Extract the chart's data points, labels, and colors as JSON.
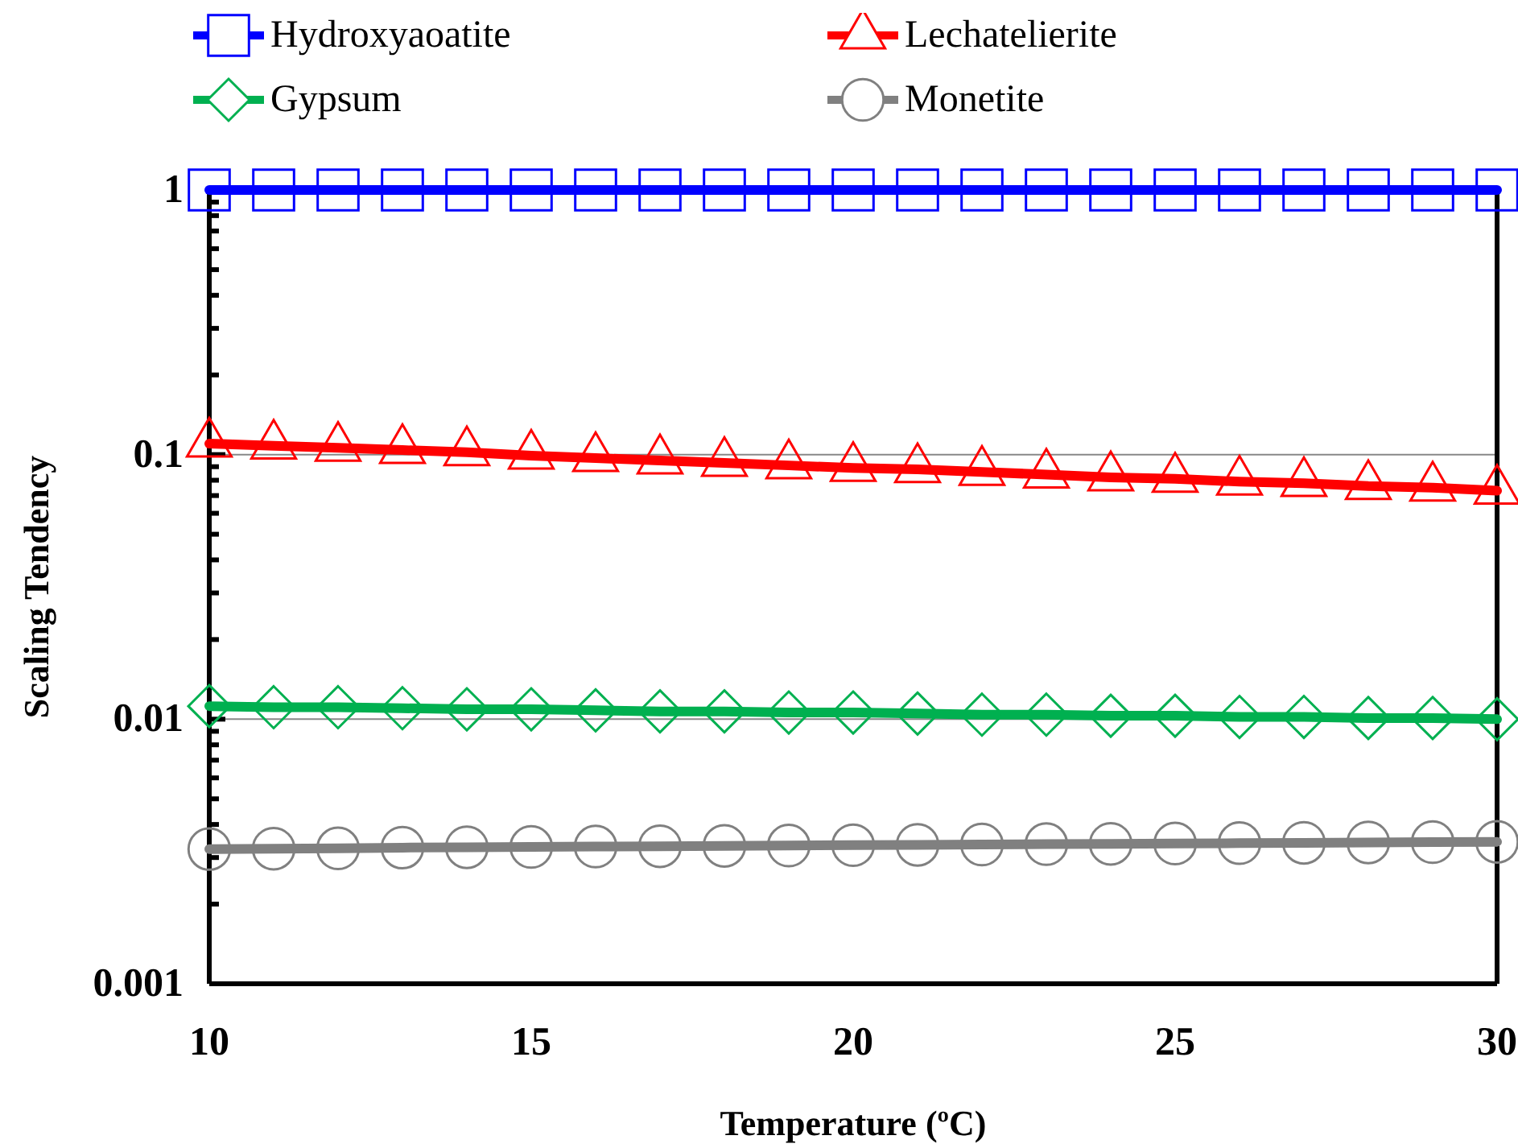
{
  "chart_data": {
    "type": "line",
    "xlabel": "Temperature (ºC)",
    "ylabel": "Scaling Tendency",
    "log": "y",
    "ref_lines": [
      {
        "axis": "y",
        "value": 0.1,
        "label": null,
        "color": "#888888"
      },
      {
        "axis": "y",
        "value": 0.01,
        "label": null,
        "color": "#888888"
      }
    ],
    "legend": "top",
    "line_style": "solid",
    "x": [
      10,
      11,
      12,
      13,
      14,
      15,
      16,
      17,
      18,
      19,
      20,
      21,
      22,
      23,
      24,
      25,
      26,
      27,
      28,
      29,
      30
    ],
    "xlim": [
      10,
      30
    ],
    "xticks": [
      10,
      15,
      20,
      25,
      30
    ],
    "ylim": [
      0.001,
      1
    ],
    "yticks": [
      0.001,
      {
        "value": 0.002,
        "label": null
      },
      {
        "value": 0.003,
        "label": null
      },
      {
        "value": 0.004,
        "label": null
      },
      {
        "value": 0.005,
        "label": null
      },
      {
        "value": 0.006,
        "label": null
      },
      {
        "value": 0.007,
        "label": null
      },
      {
        "value": 0.008,
        "label": null
      },
      {
        "value": 0.009,
        "label": null
      },
      0.01,
      {
        "value": 0.02,
        "label": null
      },
      {
        "value": 0.03,
        "label": null
      },
      {
        "value": 0.04,
        "label": null
      },
      {
        "value": 0.05,
        "label": null
      },
      {
        "value": 0.06,
        "label": null
      },
      {
        "value": 0.07,
        "label": null
      },
      {
        "value": 0.08,
        "label": null
      },
      {
        "value": 0.09,
        "label": null
      },
      0.1,
      {
        "value": 0.2,
        "label": null
      },
      {
        "value": 0.3,
        "label": null
      },
      {
        "value": 0.4,
        "label": null
      },
      {
        "value": 0.5,
        "label": null
      },
      {
        "value": 0.6,
        "label": null
      },
      {
        "value": 0.7,
        "label": null
      },
      {
        "value": 0.8,
        "label": null
      },
      {
        "value": 0.9,
        "label": null
      },
      1
    ],
    "series": [
      {
        "name": "Hydroxyaoatite",
        "color": "#0000ff",
        "marker": "square",
        "values": [
          1,
          1,
          1,
          1,
          1,
          1,
          1,
          1,
          1,
          1,
          1,
          1,
          1,
          1,
          1,
          1,
          1,
          1,
          1,
          1,
          1
        ]
      },
      {
        "name": "Lechatelierite",
        "color": "#ff0000",
        "marker": "triangle",
        "values": [
          0.11,
          0.108,
          0.106,
          0.104,
          0.102,
          0.099,
          0.097,
          0.095,
          0.093,
          0.091,
          0.089,
          0.088,
          0.086,
          0.084,
          0.082,
          0.081,
          0.079,
          0.078,
          0.076,
          0.075,
          0.073
        ]
      },
      {
        "name": "Gypsum",
        "color": "#00b050",
        "marker": "diamond",
        "values": [
          0.0112,
          0.0111,
          0.0111,
          0.011,
          0.0109,
          0.0109,
          0.0108,
          0.0107,
          0.0107,
          0.0106,
          0.0106,
          0.0105,
          0.0104,
          0.0104,
          0.0103,
          0.0103,
          0.0102,
          0.0102,
          0.0101,
          0.0101,
          0.01
        ]
      },
      {
        "name": "Monetite",
        "color": "#808080",
        "marker": "circle",
        "values": [
          0.00323,
          0.00324,
          0.00325,
          0.00327,
          0.00328,
          0.00329,
          0.0033,
          0.00331,
          0.00332,
          0.00333,
          0.00334,
          0.00335,
          0.00336,
          0.00337,
          0.00338,
          0.00339,
          0.0034,
          0.00341,
          0.00342,
          0.00343,
          0.00344
        ]
      }
    ]
  }
}
